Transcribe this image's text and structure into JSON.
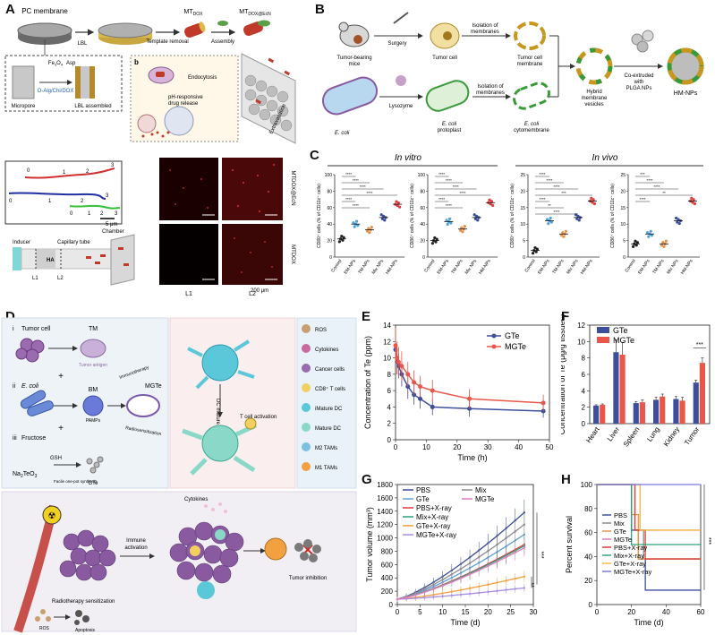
{
  "figure": {
    "panel_labels": [
      "A",
      "B",
      "C",
      "D",
      "E",
      "F",
      "G",
      "H"
    ]
  },
  "panel_a": {
    "pc_membrane": "PC membrane",
    "lbl": "LBL",
    "template_removal": "Template removal",
    "assembly": "Assembly",
    "mt_dox": "MT",
    "mt_dox_sub": "DOX",
    "mt_dox_ecn": "MT",
    "mt_dox_ecn_sub": "DOX@EcN",
    "fe3o4": "Fe",
    "fe3o4_sub1": "3",
    "fe3o4_o": "O",
    "fe3o4_sub2": "4",
    "asp": "Asp",
    "layers": "O-Alg/Chi/DOX",
    "micropore": "Micropore",
    "lbl_assembled": "LBL assembled",
    "inset_b": "b",
    "endocytosis": "Endocytosis",
    "ph_release": "pH-responsive",
    "drug_release": "drug release",
    "extravasation": "Extravasation",
    "track_labels_red": [
      "0",
      "1",
      "2",
      "3"
    ],
    "track_labels_blue": [
      "0",
      "1",
      "2",
      "3"
    ],
    "track_labels_green": [
      "0",
      "1",
      "2",
      "3"
    ],
    "scale_5um": "5 μm",
    "inducer": "Inducer",
    "capillary": "Capillary tube",
    "chamber": "Chamber",
    "ha": "HA",
    "l1": "L1",
    "l2": "L2",
    "fluor_side_top": "MTDOX@EcN",
    "fluor_side_bottom": "MTDOX",
    "fluor_l1": "L1",
    "fluor_l2": "L2",
    "scale_200": "200 μm"
  },
  "panel_b": {
    "tumor_mice": "Tumor-bearing",
    "mice": "mice",
    "surgery": "Surgery",
    "tumor_cell": "Tumor cell",
    "isolation1a": "Isolation of",
    "isolation1b": "membranes",
    "tumor_membrane_a": "Tumor cell",
    "tumor_membrane_b": "membrane",
    "ecoli": "E. coli",
    "lysozyme": "Lysozyme",
    "protoplast_a": "E. coli",
    "protoplast_b": "protoplast",
    "isolation2a": "Isolation of",
    "isolation2b": "membranes",
    "cytomem_a": "E. coli",
    "cytomem_b": "cytomembrane",
    "hybrid_a": "Hybrid",
    "hybrid_b": "membrane",
    "hybrid_c": "vesicles",
    "coext_a": "Co-extruded",
    "coext_b": "with",
    "coext_c": "PLGA NPs",
    "hmnps": "HM-NPs"
  },
  "panel_c": {
    "in_vitro": "In vitro",
    "in_vivo": "In vivo",
    "groups": [
      "Control",
      "EM-NPs",
      "TM-NPs",
      "Mix NPs",
      "HM-NPs"
    ],
    "colors": [
      "#222222",
      "#4fa3d9",
      "#e8944a",
      "#3b4fa0",
      "#e03b3b"
    ],
    "sig": "****"
  },
  "panel_d": {
    "i": "i",
    "ii": "ii",
    "iii": "iii",
    "tumor_cell": "Tumor cell",
    "tm": "TM",
    "tumor_antigen": "Tumor antigen",
    "ecoli": "E. coli",
    "bm": "BM",
    "pamps": "PAMPs",
    "fructose": "Fructose",
    "gsh": "GSH",
    "na2teo3": "Na",
    "na2teo3_s1": "2",
    "na2teo3_te": "TeO",
    "na2teo3_s2": "3",
    "facile": "Facile one-pot synthesis",
    "gte": "GTe",
    "mgte": "MGTe",
    "immunotherapy": "Immunotherapy",
    "radiosensitization": "Radiosensitization",
    "dc_mature": "DC mature",
    "t_activation": "T cell activation",
    "legend": [
      "ROS",
      "Cytokines",
      "Cancer cells",
      "CD8⁺ T cells",
      "iMature DC",
      "Mature DC",
      "M2 TAMs",
      "M1 TAMs"
    ],
    "cytokines": "Cytokines",
    "immune_a": "Immune",
    "immune_b": "activation",
    "radio_sens": "Radiotherapy sensitization",
    "ros": "ROS",
    "apoptosis": "Apoptosis",
    "tumor_inhibition": "Tumor inhibition"
  },
  "chart_data": [
    {
      "id": "C1",
      "type": "scatter",
      "title": "",
      "ylabel": "CD80⁺ cells (% of CD11c⁺ cells)",
      "ylim": [
        0,
        100
      ],
      "yticks": [
        0,
        20,
        40,
        60,
        80,
        100
      ],
      "categories": [
        "Control",
        "EM-NPs",
        "TM-NPs",
        "Mix NPs",
        "HM-NPs"
      ],
      "values": [
        22,
        40,
        33,
        48,
        64
      ],
      "sig": [
        "****",
        "****",
        "****",
        "****",
        "****",
        "****"
      ]
    },
    {
      "id": "C2",
      "type": "scatter",
      "title": "",
      "ylabel": "CD86⁺ cells (% of CD11c⁺ cells)",
      "ylim": [
        0,
        100
      ],
      "yticks": [
        0,
        20,
        40,
        60,
        80,
        100
      ],
      "categories": [
        "Control",
        "EM-NPs",
        "TM-NPs",
        "Mix NPs",
        "HM-NPs"
      ],
      "values": [
        20,
        43,
        34,
        48,
        66
      ],
      "sig": [
        "****",
        "****",
        "****",
        "****",
        "****",
        "****"
      ]
    },
    {
      "id": "C3",
      "type": "scatter",
      "title": "",
      "ylabel": "CD80⁺ cells (% of CD11c⁺ cells)",
      "ylim": [
        0,
        25
      ],
      "yticks": [
        0,
        5,
        10,
        15,
        20,
        25
      ],
      "categories": [
        "Control",
        "EM-NPs",
        "TM-NPs",
        "Mix NPs",
        "HM-NPs"
      ],
      "values": [
        2,
        11,
        7,
        12,
        17
      ],
      "sig": [
        "****",
        "****",
        "****",
        "***",
        "****",
        "**",
        "****"
      ]
    },
    {
      "id": "C4",
      "type": "scatter",
      "title": "",
      "ylabel": "CD86⁺ cells (% of CD11c⁺ cells)",
      "ylim": [
        0,
        25
      ],
      "yticks": [
        0,
        5,
        10,
        15,
        20,
        25
      ],
      "categories": [
        "Control",
        "EM-NPs",
        "TM-NPs",
        "Mix NPs",
        "HM-NPs"
      ],
      "values": [
        4,
        7,
        4,
        11,
        17
      ],
      "sig": [
        "***",
        "****",
        "****",
        "**",
        "****"
      ]
    },
    {
      "id": "E",
      "type": "line",
      "title": "",
      "xlabel": "Time (h)",
      "ylabel": "Concentration of Te (ppm)",
      "xlim": [
        0,
        50
      ],
      "ylim": [
        0,
        14
      ],
      "xticks": [
        0,
        10,
        20,
        30,
        40,
        50
      ],
      "yticks": [
        0,
        2,
        4,
        6,
        8,
        10,
        12,
        14
      ],
      "legend_position": "top-right",
      "series": [
        {
          "name": "GTe",
          "color": "#3d4f9a",
          "x": [
            0,
            0.5,
            1,
            2,
            4,
            6,
            8,
            12,
            24,
            48
          ],
          "y": [
            11,
            9.5,
            9,
            8,
            6.5,
            5.5,
            5,
            4,
            3.8,
            3.5
          ],
          "err": [
            2,
            1.5,
            1.5,
            1.5,
            1.5,
            1.2,
            1.2,
            1,
            1,
            0.8
          ]
        },
        {
          "name": "MGTe",
          "color": "#e8574a",
          "x": [
            0,
            0.5,
            1,
            2,
            4,
            6,
            8,
            12,
            24,
            48
          ],
          "y": [
            11.5,
            10,
            9.5,
            9,
            8,
            7,
            6.5,
            6,
            5,
            4.5
          ],
          "err": [
            2.2,
            2,
            1.8,
            1.8,
            1.5,
            1.5,
            1.3,
            1.3,
            1.2,
            1
          ]
        }
      ]
    },
    {
      "id": "F",
      "type": "bar",
      "title": "",
      "ylabel": "Concentration of Te (μg/g tissues)",
      "ylim": [
        0,
        12
      ],
      "yticks": [
        0,
        2,
        4,
        6,
        8,
        10,
        12
      ],
      "categories": [
        "Heart",
        "Liver",
        "Spleen",
        "Lung",
        "Kidney",
        "Tumor"
      ],
      "legend_position": "top-left",
      "series": [
        {
          "name": "GTe",
          "color": "#3d4f9a",
          "values": [
            2.2,
            8.7,
            2.5,
            2.9,
            3.0,
            5.0
          ],
          "err": [
            0.1,
            1.5,
            0.2,
            0.3,
            0.3,
            0.3
          ]
        },
        {
          "name": "MGTe",
          "color": "#e8574a",
          "values": [
            2.3,
            8.4,
            2.6,
            3.3,
            2.8,
            7.4
          ],
          "err": [
            0.1,
            1.5,
            0.3,
            0.3,
            0.4,
            0.6
          ]
        }
      ],
      "sig": "***"
    },
    {
      "id": "G",
      "type": "line",
      "title": "",
      "xlabel": "Time (d)",
      "ylabel": "Tumor volume (mm³)",
      "xlim": [
        0,
        30
      ],
      "ylim": [
        0,
        1800
      ],
      "xticks": [
        0,
        5,
        10,
        15,
        20,
        25,
        30
      ],
      "yticks": [
        0,
        200,
        400,
        600,
        800,
        1000,
        1200,
        1400,
        1600,
        1800
      ],
      "legend_position": "top-left",
      "series": [
        {
          "name": "PBS",
          "color": "#3d4f9a",
          "end": 1380
        },
        {
          "name": "GTe",
          "color": "#5aa0d8",
          "end": 1050
        },
        {
          "name": "PBS+X-ray",
          "color": "#e03b3b",
          "end": 900
        },
        {
          "name": "Mix+X-ray",
          "color": "#2aa57a",
          "end": 880
        },
        {
          "name": "GTe+X-ray",
          "color": "#f2a040",
          "end": 420
        },
        {
          "name": "MGTe+X-ray",
          "color": "#a98ee0",
          "end": 250
        },
        {
          "name": "Mix",
          "color": "#8c8c8c",
          "end": 1200
        },
        {
          "name": "MGTe",
          "color": "#e07fbf",
          "end": 850
        }
      ],
      "sig": [
        "***",
        "**"
      ]
    },
    {
      "id": "H",
      "type": "line",
      "title": "",
      "xlabel": "Time (d)",
      "ylabel": "Percent survival",
      "xlim": [
        0,
        60
      ],
      "ylim": [
        0,
        100
      ],
      "xticks": [
        0,
        20,
        40,
        60
      ],
      "yticks": [
        0,
        20,
        40,
        60,
        80,
        100
      ],
      "legend_position": "left",
      "series": [
        {
          "name": "PBS",
          "color": "#3d4f9a",
          "steps": [
            [
              0,
              100
            ],
            [
              20,
              62
            ],
            [
              24,
              38
            ],
            [
              28,
              12
            ],
            [
              60,
              12
            ]
          ]
        },
        {
          "name": "Mix",
          "color": "#8c8c8c",
          "steps": [
            [
              0,
              100
            ],
            [
              22,
              62
            ],
            [
              27,
              38
            ],
            [
              60,
              38
            ]
          ]
        },
        {
          "name": "GTe",
          "color": "#e8944a",
          "steps": [
            [
              0,
              100
            ],
            [
              20,
              75
            ],
            [
              24,
              38
            ],
            [
              60,
              38
            ]
          ]
        },
        {
          "name": "MGTe",
          "color": "#e07fbf",
          "steps": [
            [
              0,
              100
            ],
            [
              25,
              62
            ],
            [
              60,
              62
            ]
          ]
        },
        {
          "name": "PBS+X-ray",
          "color": "#e03b3b",
          "steps": [
            [
              0,
              100
            ],
            [
              22,
              62
            ],
            [
              28,
              38
            ],
            [
              60,
              38
            ]
          ]
        },
        {
          "name": "Mix+X-ray",
          "color": "#2aa57a",
          "steps": [
            [
              0,
              100
            ],
            [
              20,
              50
            ],
            [
              60,
              50
            ]
          ]
        },
        {
          "name": "GTe+X-ray",
          "color": "#f2c040",
          "steps": [
            [
              0,
              100
            ],
            [
              25,
              62
            ],
            [
              60,
              62
            ]
          ]
        },
        {
          "name": "MGTe+X-ray",
          "color": "#7a7ae0",
          "steps": [
            [
              0,
              100
            ],
            [
              60,
              100
            ]
          ]
        }
      ],
      "sig": "***"
    }
  ]
}
